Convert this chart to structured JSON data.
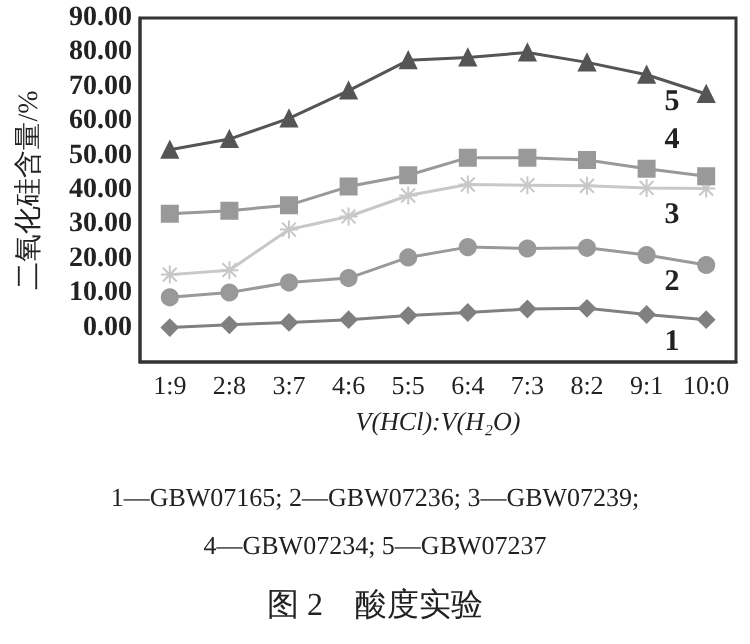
{
  "chart_data": {
    "type": "line",
    "title": "图 2　酸度实验",
    "annotations": [
      "1—GBW07165; 2—GBW07236; 3—GBW07239;",
      "4—GBW07234; 5—GBW07237"
    ],
    "xlabel": "V(HCl):V(H₂O)",
    "ylabel": "二氧化硅含量/%",
    "categories": [
      "1:9",
      "2:8",
      "3:7",
      "4:6",
      "5:5",
      "6:4",
      "7:3",
      "8:2",
      "9:1",
      "10:0"
    ],
    "ylim": [
      -10,
      90
    ],
    "yticks": [
      {
        "value": 0,
        "label": "0.00"
      },
      {
        "value": 10,
        "label": "10.00"
      },
      {
        "value": 20,
        "label": "20.00"
      },
      {
        "value": 30,
        "label": "30.00"
      },
      {
        "value": 40,
        "label": "40.00"
      },
      {
        "value": 50,
        "label": "50.00"
      },
      {
        "value": 60,
        "label": "60.00"
      },
      {
        "value": 70,
        "label": "70.00"
      },
      {
        "value": 80,
        "label": "80.00"
      },
      {
        "value": 90,
        "label": "90.00"
      }
    ],
    "grid": false,
    "legend": false,
    "series": [
      {
        "name": "1",
        "color": "#808080",
        "marker": "diamond",
        "values": [
          0,
          0.8,
          1.5,
          2.3,
          3.5,
          4.4,
          5.4,
          5.6,
          3.8,
          2.3
        ]
      },
      {
        "name": "2",
        "color": "#999999",
        "marker": "circle",
        "values": [
          8.8,
          10.2,
          13.1,
          14.4,
          20.4,
          23.4,
          23.0,
          23.2,
          21.1,
          18.2
        ]
      },
      {
        "name": "3",
        "color": "#c8c8c8",
        "marker": "cross",
        "values": [
          15.4,
          16.7,
          28.5,
          32.3,
          38.4,
          41.6,
          41.4,
          41.2,
          40.6,
          40.4
        ]
      },
      {
        "name": "4",
        "color": "#999999",
        "marker": "square",
        "values": [
          33.1,
          34.0,
          35.6,
          41.0,
          44.3,
          49.4,
          49.4,
          48.7,
          46.2,
          44.0
        ]
      },
      {
        "name": "5",
        "color": "#555555",
        "marker": "triangle",
        "values": [
          51.7,
          54.8,
          60.8,
          68.9,
          77.7,
          78.5,
          80.0,
          77.1,
          73.5,
          67.9
        ]
      }
    ]
  }
}
